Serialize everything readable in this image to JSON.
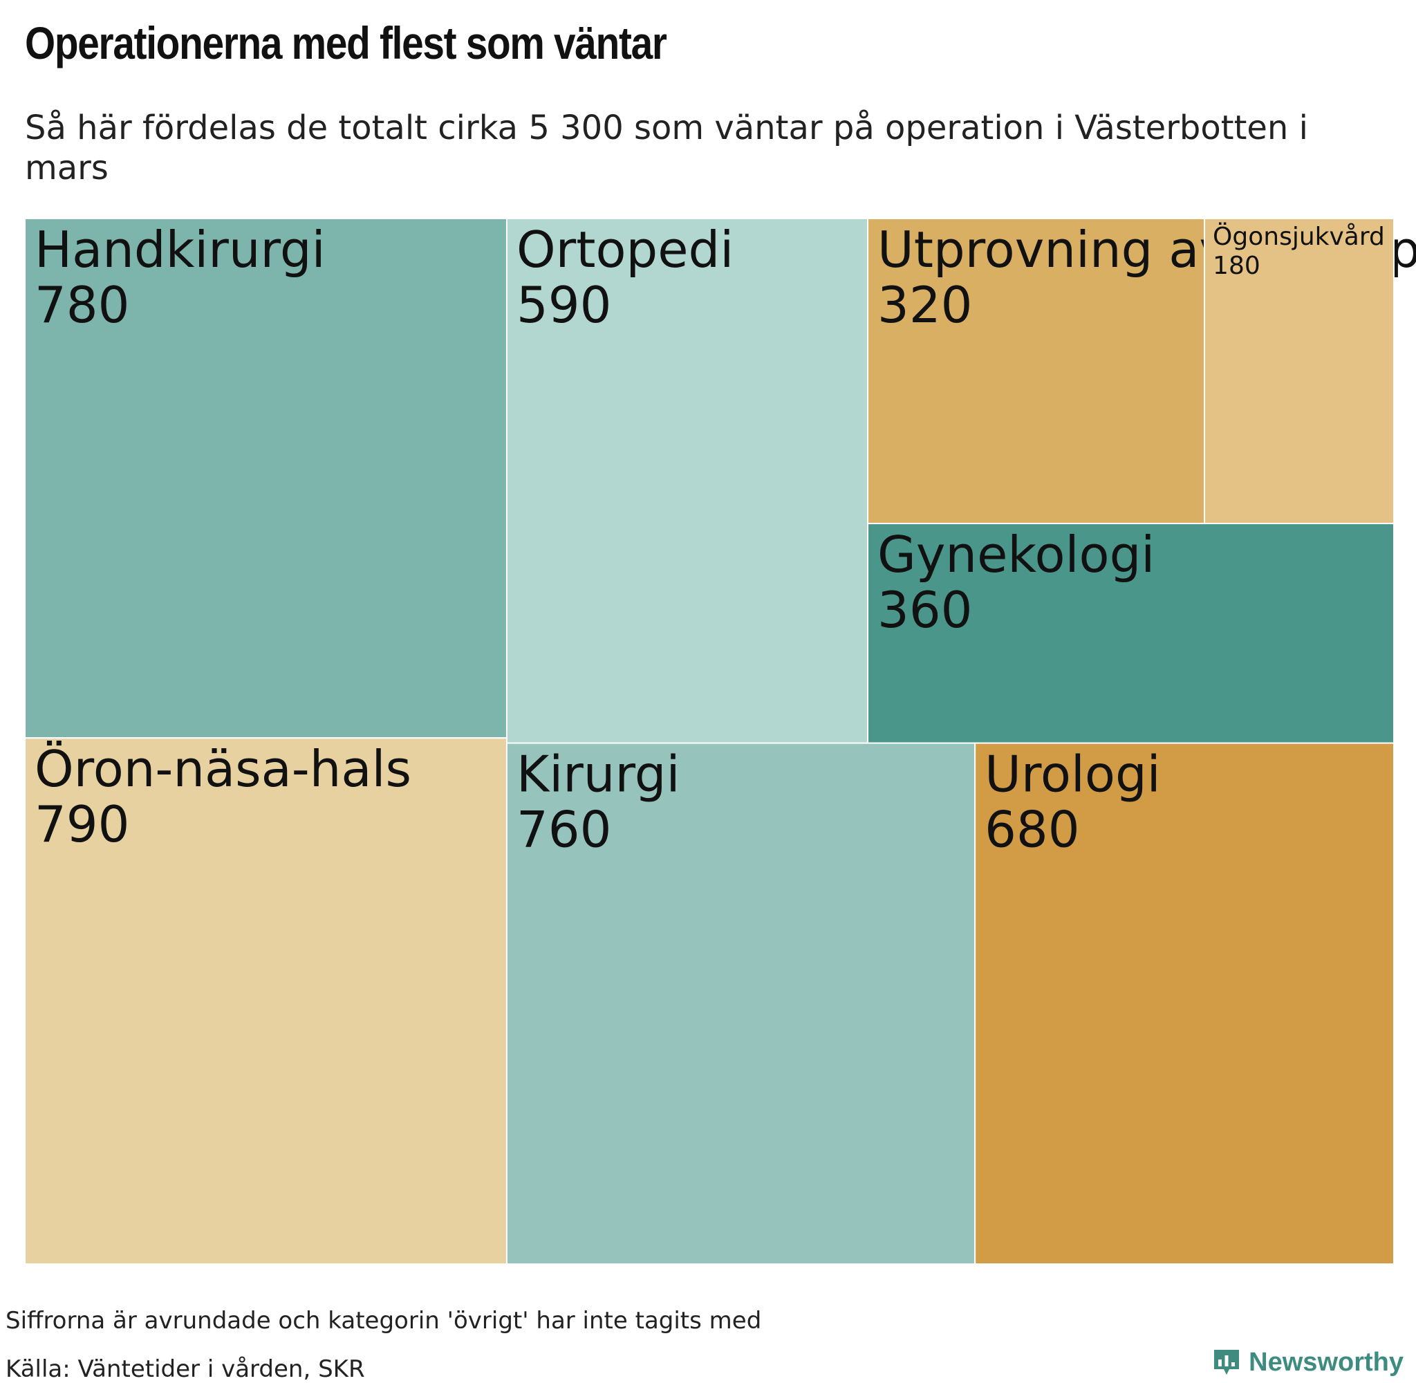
{
  "chart_data": {
    "type": "treemap",
    "title": "Operationerna med flest som väntar",
    "subtitle": "Så här fördelas de totalt cirka 5 300 som väntar på operation i Västerbotten i mars",
    "unit": "antal som väntar",
    "items": [
      {
        "label": "Öron-näsa-hals",
        "value_label": "790",
        "value": 790,
        "color": "#e8d1a1"
      },
      {
        "label": "Handkirurgi",
        "value_label": "780",
        "value": 780,
        "color": "#7db5ad"
      },
      {
        "label": "Kirurgi",
        "value_label": "760",
        "value": 760,
        "color": "#97c3bd"
      },
      {
        "label": "Urologi",
        "value_label": "680",
        "value": 680,
        "color": "#d19c45"
      },
      {
        "label": "Ortopedi",
        "value_label": "590",
        "value": 590,
        "color": "#b2d7d0"
      },
      {
        "label": "Gynekologi",
        "value_label": "360",
        "value": 360,
        "color": "#4a968a"
      },
      {
        "label": "Utprovning av hörapparat",
        "value_label": "320",
        "value": 320,
        "color": "#d9af64"
      },
      {
        "label": "Ögonsjukvård",
        "value_label": "180",
        "value": 180,
        "color": "#e4c285"
      }
    ],
    "note": "Siffrorna är avrundade och kategorin 'övrigt' har inte tagits med",
    "source": "Källa: Väntetider i vården, SKR"
  },
  "brand": {
    "name": "Newsworthy",
    "color": "#3e8c80",
    "logo_icon": "bar-chart-speech-bubble-icon"
  }
}
